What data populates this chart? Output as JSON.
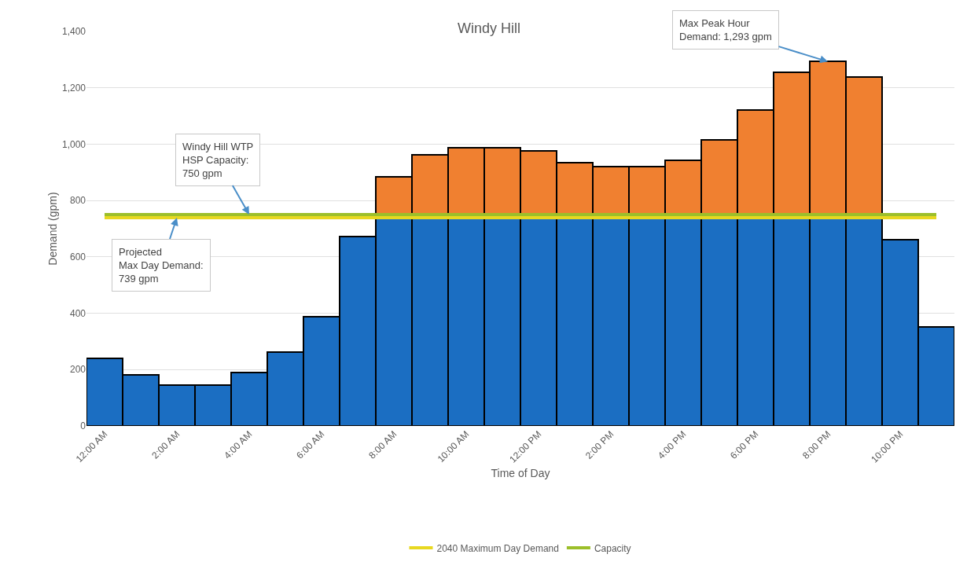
{
  "chart_data": {
    "type": "bar",
    "title": "Windy Hill",
    "xlabel": "Time of Day",
    "ylabel": "Demand (gpm)",
    "categories": [
      "12:00 AM",
      null,
      "2:00 AM",
      null,
      "4:00 AM",
      null,
      "6:00 AM",
      null,
      "8:00 AM",
      null,
      "10:00 AM",
      null,
      "12:00 PM",
      null,
      "2:00 PM",
      null,
      "4:00 PM",
      null,
      "6:00 PM",
      null,
      "8:00 PM",
      null,
      "10:00 PM",
      null
    ],
    "stacked": true,
    "series": [
      {
        "color": "#1b6ec2",
        "values": [
          241,
          180,
          145,
          145,
          189,
          261,
          389,
          671,
          739,
          739,
          739,
          739,
          739,
          739,
          739,
          739,
          739,
          739,
          739,
          739,
          739,
          739,
          662,
          351
        ]
      },
      {
        "color": "#f08030",
        "values": [
          null,
          null,
          null,
          null,
          null,
          null,
          null,
          null,
          144,
          223,
          249,
          249,
          237,
          196,
          182,
          182,
          205,
          275,
          382,
          516,
          554,
          498,
          null,
          null
        ]
      },
      {
        "type": "line",
        "name": "2040 Maximum Day Demand",
        "color": "#e8d820",
        "values": [
          739,
          739,
          739,
          739,
          739,
          739,
          739,
          739,
          739,
          739,
          739,
          739,
          739,
          739,
          739,
          739,
          739,
          739,
          739,
          739,
          739,
          739,
          739,
          739
        ]
      },
      {
        "type": "line",
        "name": "Capacity",
        "color": "#9cbf2a",
        "values": [
          750,
          750,
          750,
          750,
          750,
          750,
          750,
          750,
          750,
          750,
          750,
          750,
          750,
          750,
          750,
          750,
          750,
          750,
          750,
          750,
          750,
          750,
          750,
          750
        ]
      }
    ],
    "ylim": [
      0,
      1400
    ],
    "yticks": [
      0,
      200,
      400,
      600,
      800,
      {
        "value": 1000,
        "label": "1,000"
      },
      {
        "value": 1200,
        "label": "1,200"
      },
      {
        "value": 1400,
        "label": "1,400"
      }
    ],
    "grid": "y",
    "legend": "bottom",
    "marker": "none",
    "annotations": [
      {
        "text": "Windy Hill WTP\nHSP Capacity:\n750 gpm",
        "x": "4:00 AM",
        "y": 750
      },
      {
        "text": "Projected\nMax Day Demand:\n739 gpm",
        "x": "2:00 AM",
        "y": 739
      },
      {
        "text": "Max Peak Hour\nDemand: 1,293 gpm",
        "x": "8:00 PM",
        "y": 1293
      }
    ]
  }
}
